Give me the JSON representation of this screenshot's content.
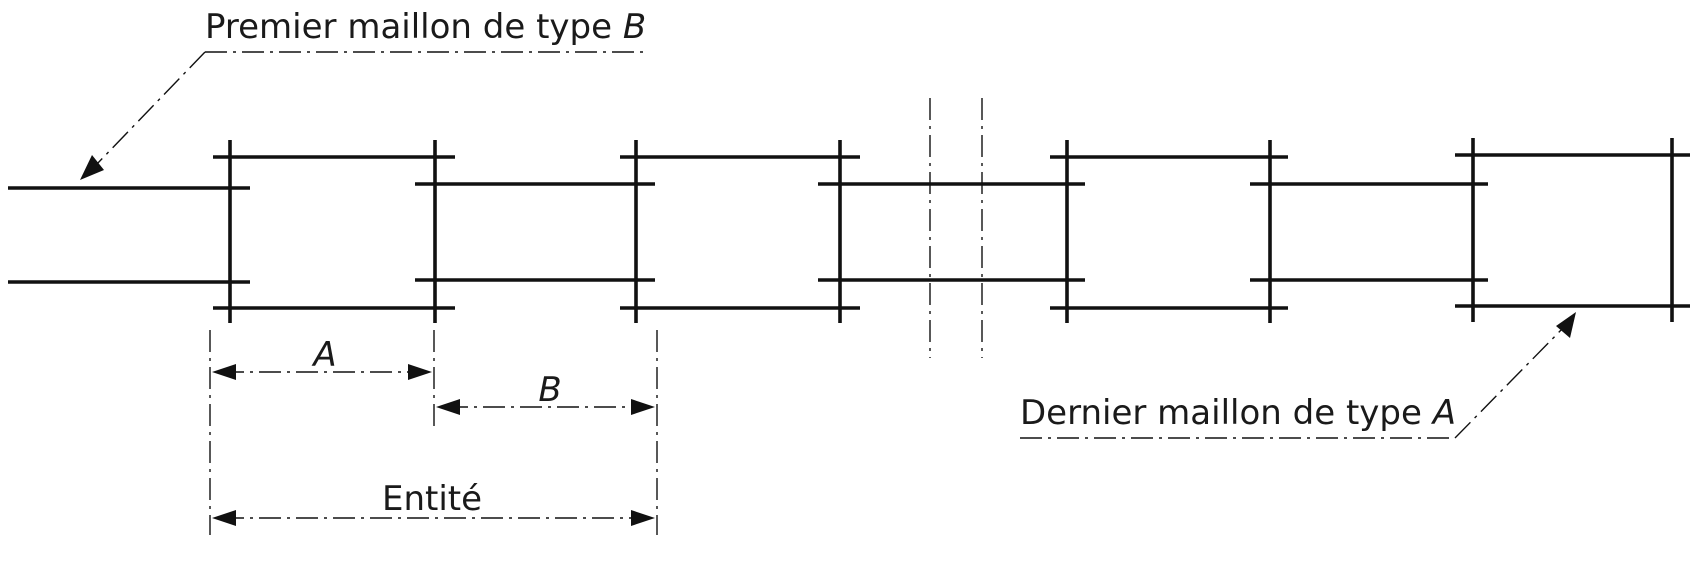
{
  "callouts": {
    "first": {
      "text": "Premier maillon de type ",
      "type": "B"
    },
    "last": {
      "text": "Dernier maillon de type ",
      "type": "A"
    }
  },
  "dimensions": {
    "a": "A",
    "b": "B",
    "entity": "Entité"
  }
}
